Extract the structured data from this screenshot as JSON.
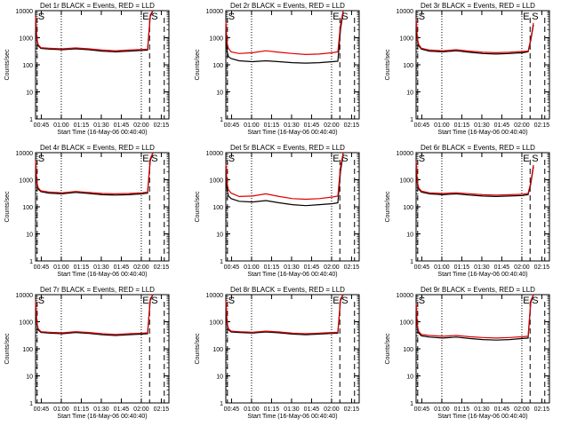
{
  "figure": {
    "common": {
      "ylabel": "Counts/sec",
      "xlabel": "Start Time (16-May-06 00:40:40)",
      "legend_text": "BLACK = Events, RED = LLD",
      "marker_left": "S",
      "marker_E": "E",
      "marker_S": "S",
      "x_ticks": [
        "00:45",
        "01:00",
        "01:15",
        "01:30",
        "01:45",
        "02:00",
        "02:15"
      ],
      "y_ticks": [
        "1",
        "10",
        "100",
        "1000",
        "10000"
      ]
    },
    "colors": {
      "events": "#000000",
      "lld": "#dd0000"
    }
  },
  "chart_data": [
    {
      "type": "line",
      "title": "Det 1r",
      "x_unit": "minutes after 00:40:40",
      "xlim": [
        0,
        100
      ],
      "ylim": [
        1,
        10000
      ],
      "yscale": "log",
      "series": [
        {
          "name": "Events",
          "x": [
            0,
            1,
            2,
            4,
            10,
            20,
            30,
            40,
            50,
            60,
            70,
            80,
            84,
            86,
            88
          ],
          "y": [
            5000,
            800,
            500,
            400,
            380,
            360,
            390,
            360,
            320,
            300,
            320,
            340,
            350,
            6000,
            10000
          ]
        },
        {
          "name": "LLD",
          "x": [
            0,
            1,
            2,
            4,
            10,
            20,
            30,
            40,
            50,
            60,
            70,
            80,
            84,
            86,
            88
          ],
          "y": [
            6000,
            900,
            550,
            430,
            410,
            390,
            420,
            390,
            350,
            330,
            350,
            370,
            380,
            7000,
            10000
          ]
        }
      ]
    },
    {
      "type": "line",
      "title": "Det 2r",
      "x_unit": "minutes after 00:40:40",
      "xlim": [
        0,
        100
      ],
      "ylim": [
        1,
        10000
      ],
      "yscale": "log",
      "series": [
        {
          "name": "Events",
          "x": [
            0,
            1,
            2,
            4,
            10,
            20,
            30,
            40,
            50,
            60,
            70,
            80,
            84,
            86,
            88
          ],
          "y": [
            3000,
            300,
            200,
            170,
            140,
            130,
            140,
            130,
            120,
            115,
            120,
            130,
            135,
            2000,
            9000
          ]
        },
        {
          "name": "LLD",
          "x": [
            0,
            1,
            2,
            4,
            10,
            20,
            30,
            40,
            50,
            60,
            70,
            80,
            84,
            86,
            88
          ],
          "y": [
            4000,
            600,
            400,
            300,
            260,
            280,
            330,
            290,
            260,
            240,
            250,
            280,
            300,
            3000,
            10000
          ]
        }
      ]
    },
    {
      "type": "line",
      "title": "Det 3r",
      "x_unit": "minutes after 00:40:40",
      "xlim": [
        0,
        100
      ],
      "ylim": [
        1,
        10000
      ],
      "yscale": "log",
      "series": [
        {
          "name": "Events",
          "x": [
            0,
            1,
            2,
            4,
            10,
            20,
            30,
            40,
            50,
            60,
            70,
            80,
            84,
            86,
            88
          ],
          "y": [
            4000,
            800,
            500,
            380,
            320,
            300,
            330,
            290,
            260,
            250,
            260,
            280,
            300,
            800,
            3000
          ]
        },
        {
          "name": "LLD",
          "x": [
            0,
            1,
            2,
            4,
            10,
            20,
            30,
            40,
            50,
            60,
            70,
            80,
            84,
            86,
            88
          ],
          "y": [
            5000,
            900,
            560,
            410,
            350,
            330,
            360,
            320,
            290,
            280,
            290,
            310,
            320,
            900,
            3500
          ]
        }
      ]
    },
    {
      "type": "line",
      "title": "Det 4r",
      "x_unit": "minutes after 00:40:40",
      "xlim": [
        0,
        100
      ],
      "ylim": [
        1,
        10000
      ],
      "yscale": "log",
      "series": [
        {
          "name": "Events",
          "x": [
            0,
            1,
            2,
            4,
            10,
            20,
            30,
            40,
            50,
            60,
            70,
            80,
            84,
            86,
            88
          ],
          "y": [
            4000,
            700,
            450,
            360,
            320,
            300,
            340,
            310,
            280,
            270,
            280,
            300,
            320,
            5000,
            10000
          ]
        },
        {
          "name": "LLD",
          "x": [
            0,
            1,
            2,
            4,
            10,
            20,
            30,
            40,
            50,
            60,
            70,
            80,
            84,
            86,
            88
          ],
          "y": [
            5000,
            800,
            500,
            390,
            350,
            330,
            370,
            340,
            310,
            300,
            310,
            330,
            350,
            6000,
            10000
          ]
        }
      ]
    },
    {
      "type": "line",
      "title": "Det 5r",
      "x_unit": "minutes after 00:40:40",
      "xlim": [
        0,
        100
      ],
      "ylim": [
        1,
        10000
      ],
      "yscale": "log",
      "series": [
        {
          "name": "Events",
          "x": [
            0,
            1,
            2,
            4,
            10,
            20,
            30,
            40,
            50,
            60,
            70,
            80,
            84,
            86,
            88
          ],
          "y": [
            3000,
            400,
            250,
            200,
            160,
            150,
            170,
            140,
            120,
            110,
            120,
            130,
            140,
            2000,
            9000
          ]
        },
        {
          "name": "LLD",
          "x": [
            0,
            1,
            2,
            4,
            10,
            20,
            30,
            40,
            50,
            60,
            70,
            80,
            84,
            86,
            88
          ],
          "y": [
            4000,
            700,
            420,
            320,
            240,
            250,
            300,
            240,
            200,
            190,
            200,
            230,
            250,
            3000,
            10000
          ]
        }
      ]
    },
    {
      "type": "line",
      "title": "Det 6r",
      "x_unit": "minutes after 00:40:40",
      "xlim": [
        0,
        100
      ],
      "ylim": [
        1,
        10000
      ],
      "yscale": "log",
      "series": [
        {
          "name": "Events",
          "x": [
            0,
            1,
            2,
            4,
            10,
            20,
            30,
            40,
            50,
            60,
            70,
            80,
            84,
            86,
            88
          ],
          "y": [
            4000,
            700,
            450,
            350,
            300,
            280,
            300,
            270,
            250,
            240,
            250,
            260,
            280,
            700,
            3000
          ]
        },
        {
          "name": "LLD",
          "x": [
            0,
            1,
            2,
            4,
            10,
            20,
            30,
            40,
            50,
            60,
            70,
            80,
            84,
            86,
            88
          ],
          "y": [
            5000,
            800,
            500,
            380,
            330,
            310,
            330,
            300,
            280,
            270,
            280,
            290,
            310,
            800,
            3500
          ]
        }
      ]
    },
    {
      "type": "line",
      "title": "Det 7r",
      "x_unit": "minutes after 00:40:40",
      "xlim": [
        0,
        100
      ],
      "ylim": [
        1,
        10000
      ],
      "yscale": "log",
      "series": [
        {
          "name": "Events",
          "x": [
            0,
            1,
            2,
            4,
            10,
            20,
            30,
            40,
            50,
            60,
            70,
            80,
            84,
            86,
            88
          ],
          "y": [
            5000,
            800,
            500,
            400,
            380,
            360,
            400,
            370,
            330,
            310,
            330,
            350,
            360,
            6000,
            10000
          ]
        },
        {
          "name": "LLD",
          "x": [
            0,
            1,
            2,
            4,
            10,
            20,
            30,
            40,
            50,
            60,
            70,
            80,
            84,
            86,
            88
          ],
          "y": [
            6000,
            900,
            550,
            430,
            410,
            390,
            430,
            400,
            360,
            340,
            360,
            380,
            390,
            7000,
            10000
          ]
        }
      ]
    },
    {
      "type": "line",
      "title": "Det 8r",
      "x_unit": "minutes after 00:40:40",
      "xlim": [
        0,
        100
      ],
      "ylim": [
        1,
        10000
      ],
      "yscale": "log",
      "series": [
        {
          "name": "Events",
          "x": [
            0,
            1,
            2,
            4,
            10,
            20,
            30,
            40,
            50,
            60,
            70,
            80,
            84,
            86,
            88
          ],
          "y": [
            5000,
            800,
            500,
            420,
            400,
            380,
            420,
            390,
            350,
            330,
            350,
            370,
            380,
            6000,
            10000
          ]
        },
        {
          "name": "LLD",
          "x": [
            0,
            1,
            2,
            4,
            10,
            20,
            30,
            40,
            50,
            60,
            70,
            80,
            84,
            86,
            88
          ],
          "y": [
            6000,
            900,
            550,
            450,
            430,
            410,
            450,
            420,
            380,
            360,
            380,
            400,
            410,
            7000,
            10000
          ]
        }
      ]
    },
    {
      "type": "line",
      "title": "Det 9r",
      "x_unit": "minutes after 00:40:40",
      "xlim": [
        0,
        100
      ],
      "ylim": [
        1,
        10000
      ],
      "yscale": "log",
      "series": [
        {
          "name": "Events",
          "x": [
            0,
            1,
            2,
            4,
            10,
            20,
            30,
            40,
            50,
            60,
            70,
            80,
            84,
            86,
            88
          ],
          "y": [
            4000,
            600,
            380,
            300,
            270,
            250,
            270,
            240,
            220,
            210,
            220,
            240,
            250,
            5000,
            10000
          ]
        },
        {
          "name": "LLD",
          "x": [
            0,
            1,
            2,
            4,
            10,
            20,
            30,
            40,
            50,
            60,
            70,
            80,
            84,
            86,
            88
          ],
          "y": [
            5000,
            700,
            430,
            340,
            310,
            290,
            310,
            280,
            260,
            250,
            260,
            280,
            290,
            6000,
            10000
          ]
        }
      ]
    }
  ]
}
